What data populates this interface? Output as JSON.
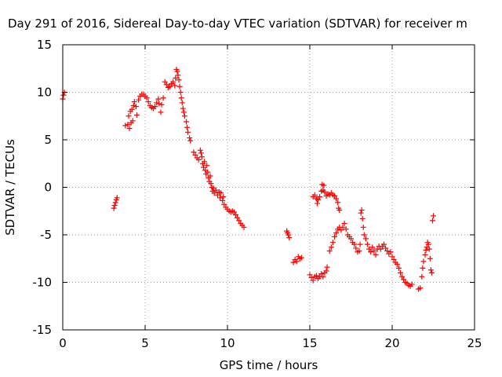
{
  "chart_data": {
    "type": "scatter",
    "title": "Day 291 of 2016, Sidereal Day-to-day VTEC variation (SDTVAR) for receiver m",
    "xlabel": "GPS time / hours",
    "ylabel": "SDTVAR / TECUs",
    "xlim": [
      0,
      25
    ],
    "ylim": [
      -15,
      15
    ],
    "xticks": [
      0,
      5,
      10,
      15,
      20,
      25
    ],
    "yticks": [
      -15,
      -10,
      -5,
      0,
      5,
      10,
      15
    ],
    "xtick_labels": [
      "0",
      "5",
      "10",
      "15",
      "20",
      "25"
    ],
    "ytick_labels": [
      "-15",
      "-10",
      "-5",
      "0",
      "5",
      "10",
      "15"
    ],
    "grid": true,
    "marker": "+",
    "color": "#ff0000",
    "segments": [
      {
        "name": "seg1",
        "points": [
          [
            0.0,
            9.3
          ],
          [
            0.05,
            9.7
          ],
          [
            0.1,
            10.0
          ]
        ]
      },
      {
        "name": "seg2",
        "points": [
          [
            3.1,
            -2.2
          ],
          [
            3.15,
            -1.9
          ],
          [
            3.2,
            -1.6
          ],
          [
            3.25,
            -1.3
          ],
          [
            3.3,
            -1.1
          ]
        ]
      },
      {
        "name": "seg3",
        "points": [
          [
            3.8,
            6.5
          ],
          [
            3.95,
            6.6
          ],
          [
            4.0,
            7.5
          ],
          [
            4.05,
            6.2
          ],
          [
            4.1,
            8.0
          ],
          [
            4.15,
            6.8
          ],
          [
            4.2,
            8.2
          ],
          [
            4.25,
            7.0
          ],
          [
            4.3,
            8.6
          ],
          [
            4.35,
            9.0
          ],
          [
            4.45,
            8.5
          ],
          [
            4.5,
            7.6
          ],
          [
            4.6,
            9.2
          ],
          [
            4.7,
            9.6
          ],
          [
            4.8,
            9.8
          ],
          [
            4.9,
            9.8
          ],
          [
            5.0,
            9.6
          ],
          [
            5.1,
            9.4
          ],
          [
            5.2,
            9.0
          ],
          [
            5.3,
            8.6
          ],
          [
            5.4,
            8.4
          ],
          [
            5.5,
            8.3
          ],
          [
            5.6,
            8.5
          ],
          [
            5.7,
            8.9
          ],
          [
            5.8,
            9.3
          ],
          [
            5.85,
            8.8
          ],
          [
            5.95,
            7.9
          ],
          [
            6.0,
            8.7
          ],
          [
            6.1,
            9.4
          ],
          [
            6.2,
            11.1
          ],
          [
            6.3,
            10.8
          ],
          [
            6.4,
            10.5
          ],
          [
            6.5,
            10.6
          ],
          [
            6.6,
            10.9
          ],
          [
            6.7,
            11.1
          ],
          [
            6.8,
            10.7
          ],
          [
            6.85,
            11.5
          ],
          [
            6.9,
            12.4
          ],
          [
            6.95,
            12.2
          ],
          [
            7.0,
            11.8
          ],
          [
            7.05,
            11.3
          ],
          [
            7.1,
            10.6
          ],
          [
            7.15,
            10.0
          ],
          [
            7.2,
            9.4
          ],
          [
            7.25,
            8.9
          ],
          [
            7.3,
            8.3
          ],
          [
            7.35,
            7.9
          ],
          [
            7.4,
            7.5
          ],
          [
            7.5,
            6.9
          ],
          [
            7.55,
            6.3
          ],
          [
            7.6,
            5.8
          ],
          [
            7.7,
            5.2
          ],
          [
            7.75,
            4.9
          ]
        ]
      },
      {
        "name": "seg4",
        "points": [
          [
            7.95,
            3.7
          ],
          [
            8.05,
            3.4
          ],
          [
            8.15,
            3.1
          ],
          [
            8.25,
            2.9
          ],
          [
            8.35,
            3.9
          ],
          [
            8.4,
            3.6
          ],
          [
            8.45,
            3.2
          ],
          [
            8.5,
            2.5
          ],
          [
            8.55,
            2.1
          ],
          [
            8.6,
            2.7
          ],
          [
            8.65,
            1.8
          ],
          [
            8.7,
            1.4
          ],
          [
            8.75,
            2.3
          ],
          [
            8.8,
            1.6
          ],
          [
            8.85,
            1.0
          ],
          [
            8.9,
            0.6
          ],
          [
            8.95,
            1.2
          ],
          [
            9.0,
            0.4
          ],
          [
            9.05,
            0.0
          ],
          [
            9.1,
            -0.4
          ],
          [
            9.15,
            -0.1
          ],
          [
            9.2,
            -0.6
          ],
          [
            9.3,
            -0.3
          ],
          [
            9.4,
            -0.8
          ],
          [
            9.5,
            -0.5
          ],
          [
            9.55,
            -1.1
          ],
          [
            9.6,
            -0.6
          ],
          [
            9.7,
            -1.4
          ],
          [
            9.75,
            -1.0
          ],
          [
            9.8,
            -1.8
          ],
          [
            9.9,
            -2.1
          ],
          [
            10.0,
            -2.3
          ],
          [
            10.1,
            -2.5
          ],
          [
            10.2,
            -2.6
          ],
          [
            10.3,
            -2.5
          ],
          [
            10.4,
            -2.6
          ],
          [
            10.5,
            -2.9
          ],
          [
            10.6,
            -3.2
          ],
          [
            10.7,
            -3.5
          ],
          [
            10.8,
            -3.8
          ],
          [
            10.9,
            -4.0
          ],
          [
            11.0,
            -4.2
          ]
        ]
      },
      {
        "name": "seg5",
        "points": [
          [
            13.6,
            -4.6
          ],
          [
            13.65,
            -4.8
          ],
          [
            13.7,
            -5.0
          ],
          [
            13.75,
            -5.3
          ]
        ]
      },
      {
        "name": "seg6",
        "points": [
          [
            14.0,
            -7.9
          ],
          [
            14.1,
            -7.6
          ],
          [
            14.2,
            -7.8
          ],
          [
            14.3,
            -7.3
          ],
          [
            14.4,
            -7.5
          ],
          [
            14.5,
            -7.4
          ]
        ]
      },
      {
        "name": "seg7",
        "points": [
          [
            15.0,
            -9.2
          ],
          [
            15.1,
            -9.5
          ],
          [
            15.2,
            -9.8
          ],
          [
            15.3,
            -9.4
          ],
          [
            15.4,
            -9.3
          ],
          [
            15.5,
            -9.6
          ],
          [
            15.6,
            -9.4
          ],
          [
            15.7,
            -9.1
          ],
          [
            15.8,
            -9.4
          ],
          [
            15.9,
            -9.0
          ],
          [
            16.0,
            -8.8
          ],
          [
            16.05,
            -8.4
          ]
        ]
      },
      {
        "name": "seg8",
        "points": [
          [
            15.2,
            -1.0
          ],
          [
            15.3,
            -0.8
          ],
          [
            15.4,
            -1.2
          ],
          [
            15.45,
            -1.7
          ],
          [
            15.5,
            -1.3
          ],
          [
            15.6,
            -1.0
          ],
          [
            15.7,
            -0.4
          ],
          [
            15.75,
            0.3
          ],
          [
            15.8,
            -0.3
          ],
          [
            15.85,
            0.2
          ],
          [
            15.9,
            -0.5
          ],
          [
            16.0,
            -0.9
          ],
          [
            16.1,
            -0.7
          ],
          [
            16.2,
            -0.8
          ],
          [
            16.3,
            -0.6
          ],
          [
            16.4,
            -0.8
          ],
          [
            16.5,
            -0.9
          ],
          [
            16.6,
            -1.2
          ],
          [
            16.7,
            -1.6
          ],
          [
            16.75,
            -2.2
          ],
          [
            16.8,
            -2.4
          ]
        ]
      },
      {
        "name": "seg9",
        "points": [
          [
            16.2,
            -6.7
          ],
          [
            16.3,
            -6.3
          ],
          [
            16.4,
            -5.8
          ],
          [
            16.5,
            -5.2
          ],
          [
            16.6,
            -4.8
          ],
          [
            16.7,
            -4.4
          ],
          [
            16.8,
            -4.2
          ],
          [
            16.9,
            -4.5
          ],
          [
            17.0,
            -4.2
          ],
          [
            17.1,
            -3.8
          ],
          [
            17.2,
            -4.4
          ],
          [
            17.3,
            -5.0
          ],
          [
            17.4,
            -5.2
          ],
          [
            17.5,
            -5.4
          ],
          [
            17.6,
            -5.8
          ],
          [
            17.7,
            -6.0
          ],
          [
            17.8,
            -6.4
          ],
          [
            17.9,
            -6.8
          ],
          [
            18.0,
            -6.7
          ],
          [
            18.05,
            -6.0
          ],
          [
            18.1,
            -2.7
          ],
          [
            18.15,
            -2.4
          ],
          [
            18.2,
            -3.3
          ],
          [
            18.25,
            -4.2
          ],
          [
            18.3,
            -5.0
          ],
          [
            18.4,
            -5.4
          ],
          [
            18.5,
            -6.0
          ],
          [
            18.6,
            -6.5
          ],
          [
            18.7,
            -6.8
          ],
          [
            18.8,
            -6.3
          ],
          [
            18.9,
            -6.7
          ],
          [
            19.0,
            -7.1
          ],
          [
            19.1,
            -6.5
          ],
          [
            19.2,
            -6.2
          ],
          [
            19.3,
            -6.5
          ],
          [
            19.4,
            -6.2
          ],
          [
            19.5,
            -6.0
          ],
          [
            19.6,
            -6.4
          ],
          [
            19.7,
            -6.7
          ],
          [
            19.8,
            -7.0
          ],
          [
            19.9,
            -6.8
          ],
          [
            20.0,
            -7.3
          ],
          [
            20.1,
            -7.6
          ],
          [
            20.2,
            -7.9
          ],
          [
            20.3,
            -8.1
          ],
          [
            20.4,
            -8.5
          ],
          [
            20.5,
            -9.0
          ],
          [
            20.6,
            -9.4
          ],
          [
            20.7,
            -9.7
          ],
          [
            20.8,
            -10.0
          ],
          [
            20.9,
            -10.1
          ],
          [
            21.0,
            -10.3
          ],
          [
            21.1,
            -10.4
          ],
          [
            21.2,
            -10.2
          ],
          [
            21.6,
            -10.7
          ],
          [
            21.7,
            -10.6
          ]
        ]
      },
      {
        "name": "seg10",
        "points": [
          [
            21.8,
            -9.4
          ],
          [
            21.85,
            -8.5
          ],
          [
            21.9,
            -7.8
          ],
          [
            22.0,
            -7.1
          ],
          [
            22.05,
            -6.6
          ],
          [
            22.1,
            -6.3
          ],
          [
            22.15,
            -5.8
          ],
          [
            22.2,
            -6.0
          ],
          [
            22.25,
            -6.5
          ],
          [
            22.3,
            -7.5
          ],
          [
            22.35,
            -8.7
          ],
          [
            22.4,
            -9.0
          ],
          [
            22.45,
            -3.5
          ],
          [
            22.5,
            -3.0
          ]
        ]
      }
    ]
  }
}
